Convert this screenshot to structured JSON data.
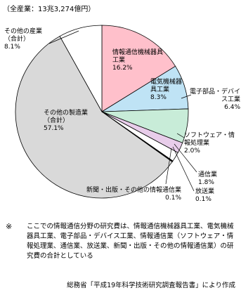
{
  "chart_data": {
    "type": "pie",
    "subtitle": "（全産業：13兆3,274億円）",
    "categories": [
      "情報通信機械器具工業",
      "電気機械器具工業",
      "電子部品・デバイス工業",
      "ソフトウェア・情報処理業",
      "通信業",
      "放送業",
      "新聞・出版・その他の情報通信業",
      "その他の製造業（合計）",
      "その他の産業（合計）"
    ],
    "values": [
      16.2,
      8.3,
      6.4,
      2.0,
      1.8,
      0.1,
      0.1,
      57.1,
      8.1
    ],
    "value_labels": [
      "16.2%",
      "8.3%",
      "6.4%",
      "2.0%",
      "1.8%",
      "0.1%",
      "0.1%",
      "57.1%",
      "8.1%"
    ],
    "colors": [
      "#ffc0cb",
      "#bfe3f5",
      "#c8ecd8",
      "#e8cdea",
      "#ffffff",
      "#fbe0b0",
      "#f4a460",
      "#d9d9d9",
      "#ffffff"
    ]
  },
  "notes": {
    "mark": "※",
    "text": "ここでの情報通信分野の研究費は、情報通信機械器具工業、電気機械器具工業、電子部品・デバイス工業、情報通信業（ソフトウェア・情報処理業、通信業、放送業、新聞・出版・その他の情報通信業）の研究費の合計としている",
    "source": "総務省「平成19年科学技術研究調査報告書」により作成"
  }
}
